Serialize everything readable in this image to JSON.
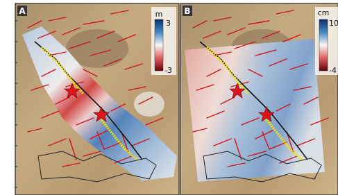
{
  "panels": [
    {
      "label": "A",
      "colorbar": {
        "unit": "m",
        "max": 3,
        "min": -3
      }
    },
    {
      "label": "B",
      "colorbar": {
        "unit": "cm",
        "max": 10,
        "min": -4
      }
    }
  ]
}
